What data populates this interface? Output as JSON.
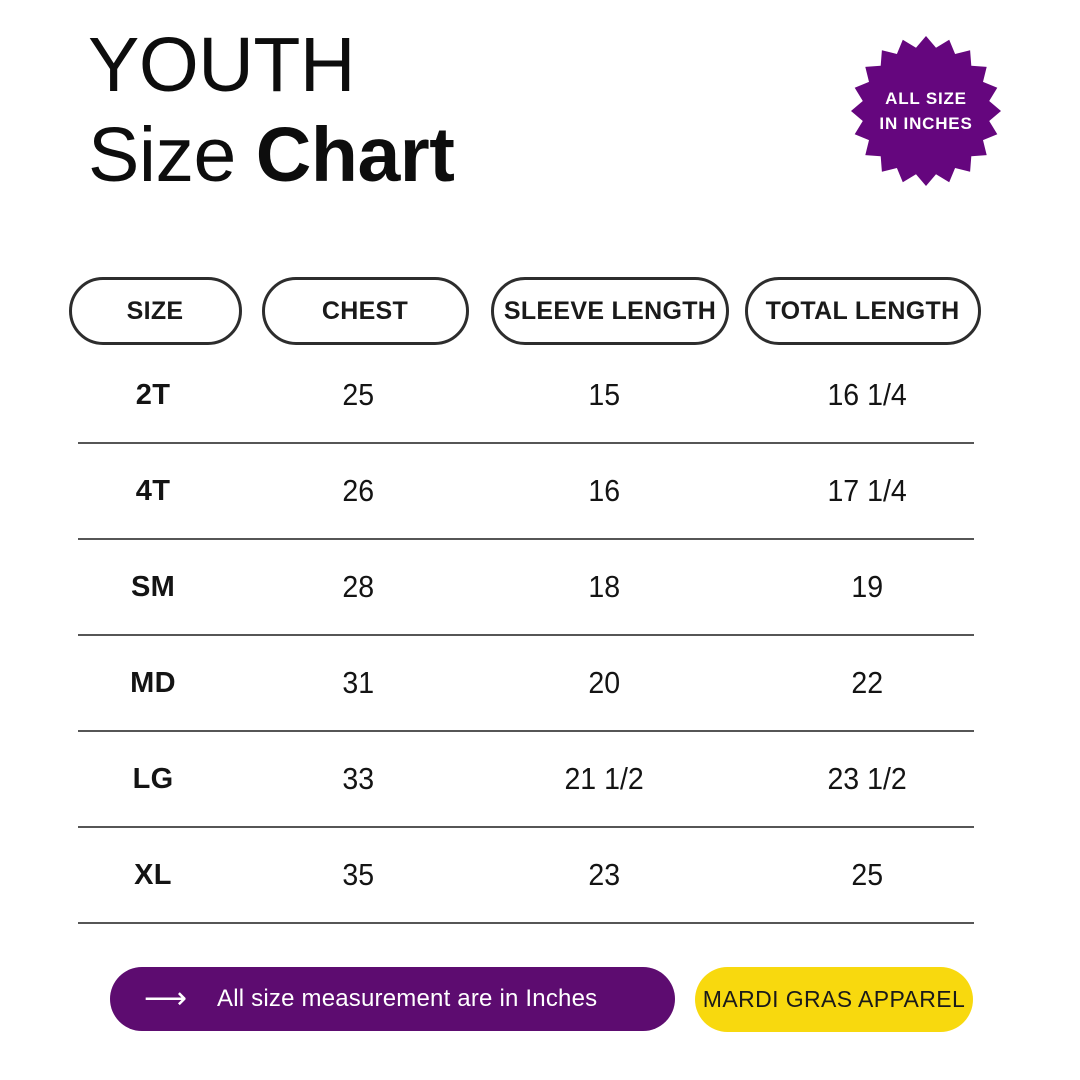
{
  "title": {
    "line1": "YOUTH",
    "line2_regular": "Size",
    "line2_bold": "Chart"
  },
  "badge": {
    "line1": "ALL SIZE",
    "line2": "IN INCHES",
    "color": "#65067E",
    "text_color": "#FFFFFF"
  },
  "table": {
    "headers": [
      "SIZE",
      "CHEST",
      "SLEEVE LENGTH",
      "TOTAL LENGTH"
    ],
    "rows": [
      {
        "size": "2T",
        "chest": "25",
        "sleeve": "15",
        "total": "16 1/4"
      },
      {
        "size": "4T",
        "chest": "26",
        "sleeve": "16",
        "total": "17 1/4"
      },
      {
        "size": "SM",
        "chest": "28",
        "sleeve": "18",
        "total": "19"
      },
      {
        "size": "MD",
        "chest": "31",
        "sleeve": "20",
        "total": "22"
      },
      {
        "size": "LG",
        "chest": "33",
        "sleeve": "21 1/2",
        "total": "23 1/2"
      },
      {
        "size": "XL",
        "chest": "35",
        "sleeve": "23",
        "total": "25"
      }
    ]
  },
  "chart_data": {
    "type": "table",
    "title": "YOUTH Size Chart",
    "columns": [
      "SIZE",
      "CHEST",
      "SLEEVE LENGTH",
      "TOTAL LENGTH"
    ],
    "rows": [
      [
        "2T",
        "25",
        "15",
        "16 1/4"
      ],
      [
        "4T",
        "26",
        "16",
        "17 1/4"
      ],
      [
        "SM",
        "28",
        "18",
        "19"
      ],
      [
        "MD",
        "31",
        "20",
        "22"
      ],
      [
        "LG",
        "33",
        "21 1/2",
        "23 1/2"
      ],
      [
        "XL",
        "35",
        "23",
        "25"
      ]
    ],
    "units": "inches"
  },
  "footer": {
    "note": {
      "arrow": "⟶",
      "text": "All size measurement are in Inches",
      "bg": "#5D0C70",
      "text_color": "#FFFFFF"
    },
    "brand": {
      "text": "MARDI GRAS APPAREL",
      "bg": "#F8D90E",
      "text_color": "#1A1A1A"
    }
  }
}
